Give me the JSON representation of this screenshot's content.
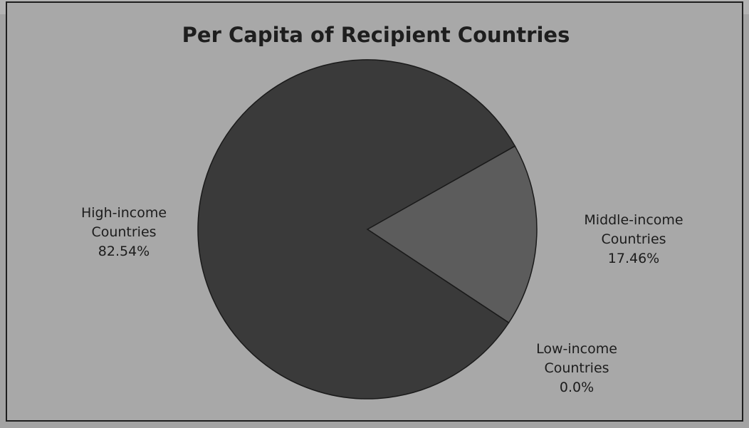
{
  "chart_data": {
    "type": "pie",
    "title": "Per Capita of Recipient Countries",
    "slices": [
      {
        "label_lines": [
          "High-income",
          "Countries"
        ],
        "value": 82.54,
        "value_label": "82.54%",
        "color": "#3a3a3a"
      },
      {
        "label_lines": [
          "Middle-income",
          "Countries"
        ],
        "value": 17.46,
        "value_label": "17.46%",
        "color": "#5c5c5c"
      },
      {
        "label_lines": [
          "Low-income",
          "Countries"
        ],
        "value": 0.0,
        "value_label": "0.0%",
        "color": "#3a3a3a"
      }
    ],
    "legend": "none"
  },
  "colors": {
    "border": "#1e1e1e",
    "background": "#a8a8a8",
    "pie_edge": "#1a1a1a"
  }
}
